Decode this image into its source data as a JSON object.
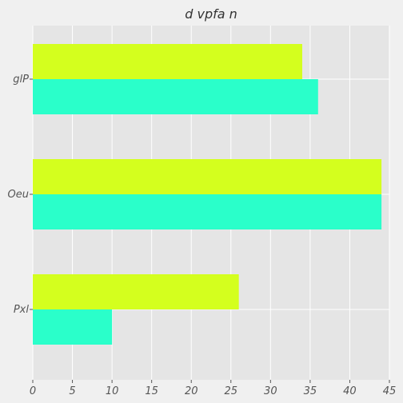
{
  "chart_data": {
    "type": "bar",
    "orientation": "horizontal",
    "title": "d vpfa  n",
    "xlabel": "",
    "ylabel": "",
    "categories": [
      "glP",
      "Oeu",
      "Pxl"
    ],
    "series": [
      {
        "values": [
          34,
          44,
          26
        ],
        "color": "#d4ff1e"
      },
      {
        "values": [
          36,
          44,
          10
        ],
        "color": "#2affca"
      }
    ],
    "xlim": [
      0,
      45
    ],
    "xticks": [
      0,
      5,
      10,
      15,
      20,
      25,
      30,
      35,
      40,
      45
    ],
    "grid": true,
    "legend": "none"
  },
  "colors": {
    "background": "#f0f0f0",
    "plot_background": "#e5e5e5",
    "grid": "#ffffff",
    "text": "#555555"
  }
}
